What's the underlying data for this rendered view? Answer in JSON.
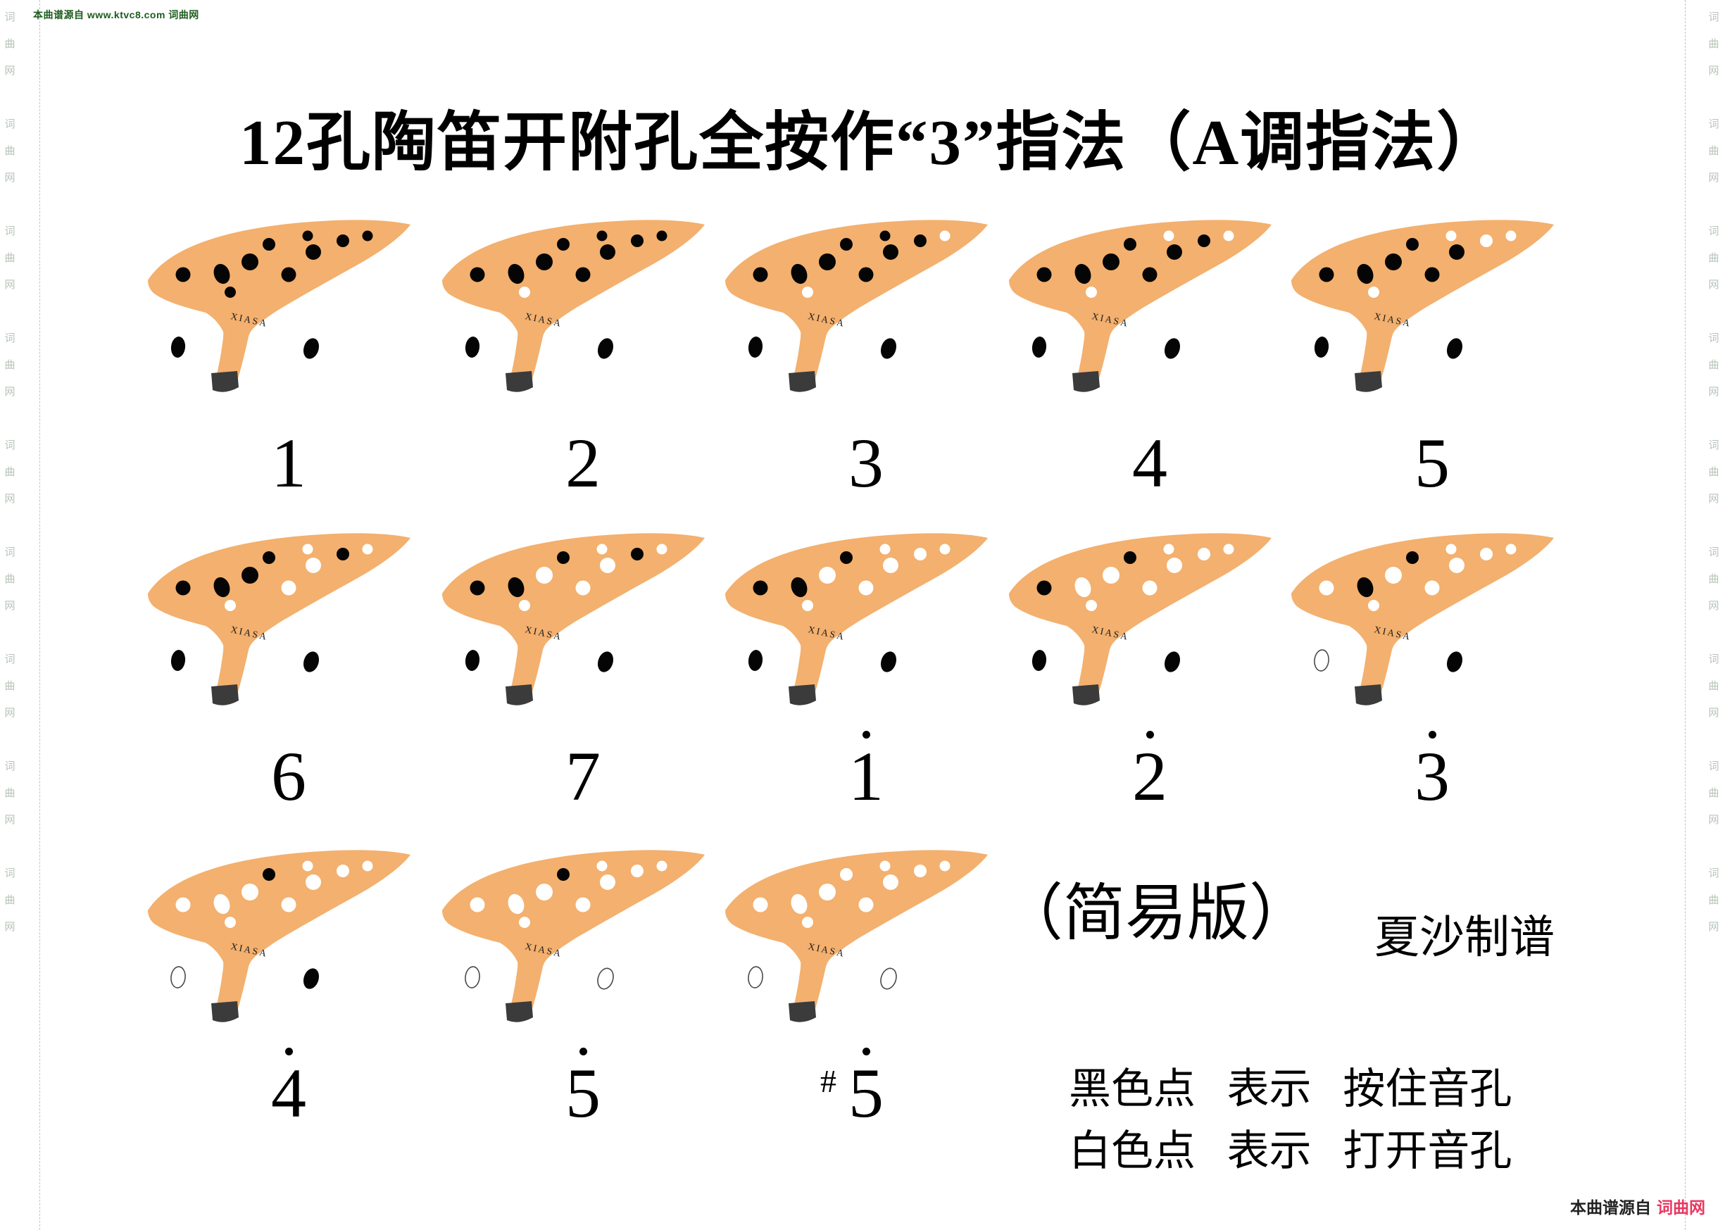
{
  "page": {
    "title": "12孔陶笛开附孔全按作“3”指法（A调指法）",
    "edition": "（简易版）",
    "credit": "夏沙制谱",
    "legend_black": "黑色点 表示 按住音孔",
    "legend_white": "白色点 表示 打开音孔",
    "source_top": "本曲谱源自 www.ktvc8.com 词曲网",
    "source_bottom_prefix": "本曲谱源自",
    "source_bottom_brand": "词曲网",
    "side_watermark": "词曲网"
  },
  "ocarina": {
    "brand": "XIASA",
    "body_color": "#F3B06E",
    "cap_color": "#3B3B3B",
    "hole_closed_color": "#050505",
    "hole_open_color": "#FFFFFF",
    "open_thumb_outline_color": "#4a4a4a"
  },
  "chart_data": {
    "type": "fingering-chart",
    "instrument": "12-hole ocarina (12孔陶笛)",
    "key": "A调指法, 全按作 3",
    "holes": [
      "A-left-large",
      "B-left-oval",
      "C-left-small-sub",
      "D-front-large",
      "E-top-small",
      "F-front-mid",
      "G-top-small-right",
      "H-front-right",
      "I-right-mid",
      "J-right-small",
      "K-left-thumb",
      "L-right-thumb"
    ],
    "legend": {
      "black_dot": "按住音孔",
      "white_dot": "打开音孔"
    },
    "notes": [
      {
        "label": "1",
        "octave_dot": false,
        "sharp": false,
        "open": []
      },
      {
        "label": "2",
        "octave_dot": false,
        "sharp": false,
        "open": [
          "C"
        ]
      },
      {
        "label": "3",
        "octave_dot": false,
        "sharp": false,
        "open": [
          "C",
          "J"
        ]
      },
      {
        "label": "4",
        "octave_dot": false,
        "sharp": false,
        "open": [
          "C",
          "G",
          "J"
        ]
      },
      {
        "label": "5",
        "octave_dot": false,
        "sharp": false,
        "open": [
          "C",
          "G",
          "I",
          "J"
        ]
      },
      {
        "label": "6",
        "octave_dot": false,
        "sharp": false,
        "open": [
          "C",
          "F",
          "G",
          "H",
          "J"
        ]
      },
      {
        "label": "7",
        "octave_dot": false,
        "sharp": false,
        "open": [
          "C",
          "D",
          "F",
          "G",
          "H",
          "J"
        ]
      },
      {
        "label": "1",
        "octave_dot": true,
        "sharp": false,
        "open": [
          "C",
          "D",
          "F",
          "G",
          "H",
          "I",
          "J"
        ]
      },
      {
        "label": "2",
        "octave_dot": true,
        "sharp": false,
        "open": [
          "B",
          "C",
          "D",
          "F",
          "G",
          "H",
          "I",
          "J"
        ]
      },
      {
        "label": "3",
        "octave_dot": true,
        "sharp": false,
        "open": [
          "A",
          "C",
          "D",
          "F",
          "G",
          "H",
          "I",
          "J",
          "K"
        ]
      },
      {
        "label": "4",
        "octave_dot": true,
        "sharp": false,
        "open": [
          "A",
          "B",
          "C",
          "D",
          "F",
          "G",
          "H",
          "I",
          "J",
          "K"
        ]
      },
      {
        "label": "5",
        "octave_dot": true,
        "sharp": false,
        "open": [
          "A",
          "B",
          "C",
          "D",
          "F",
          "G",
          "H",
          "I",
          "J",
          "K",
          "L"
        ]
      },
      {
        "label": "5",
        "octave_dot": true,
        "sharp": true,
        "open": [
          "A",
          "B",
          "C",
          "D",
          "E",
          "F",
          "G",
          "H",
          "I",
          "J",
          "K",
          "L"
        ]
      }
    ]
  }
}
